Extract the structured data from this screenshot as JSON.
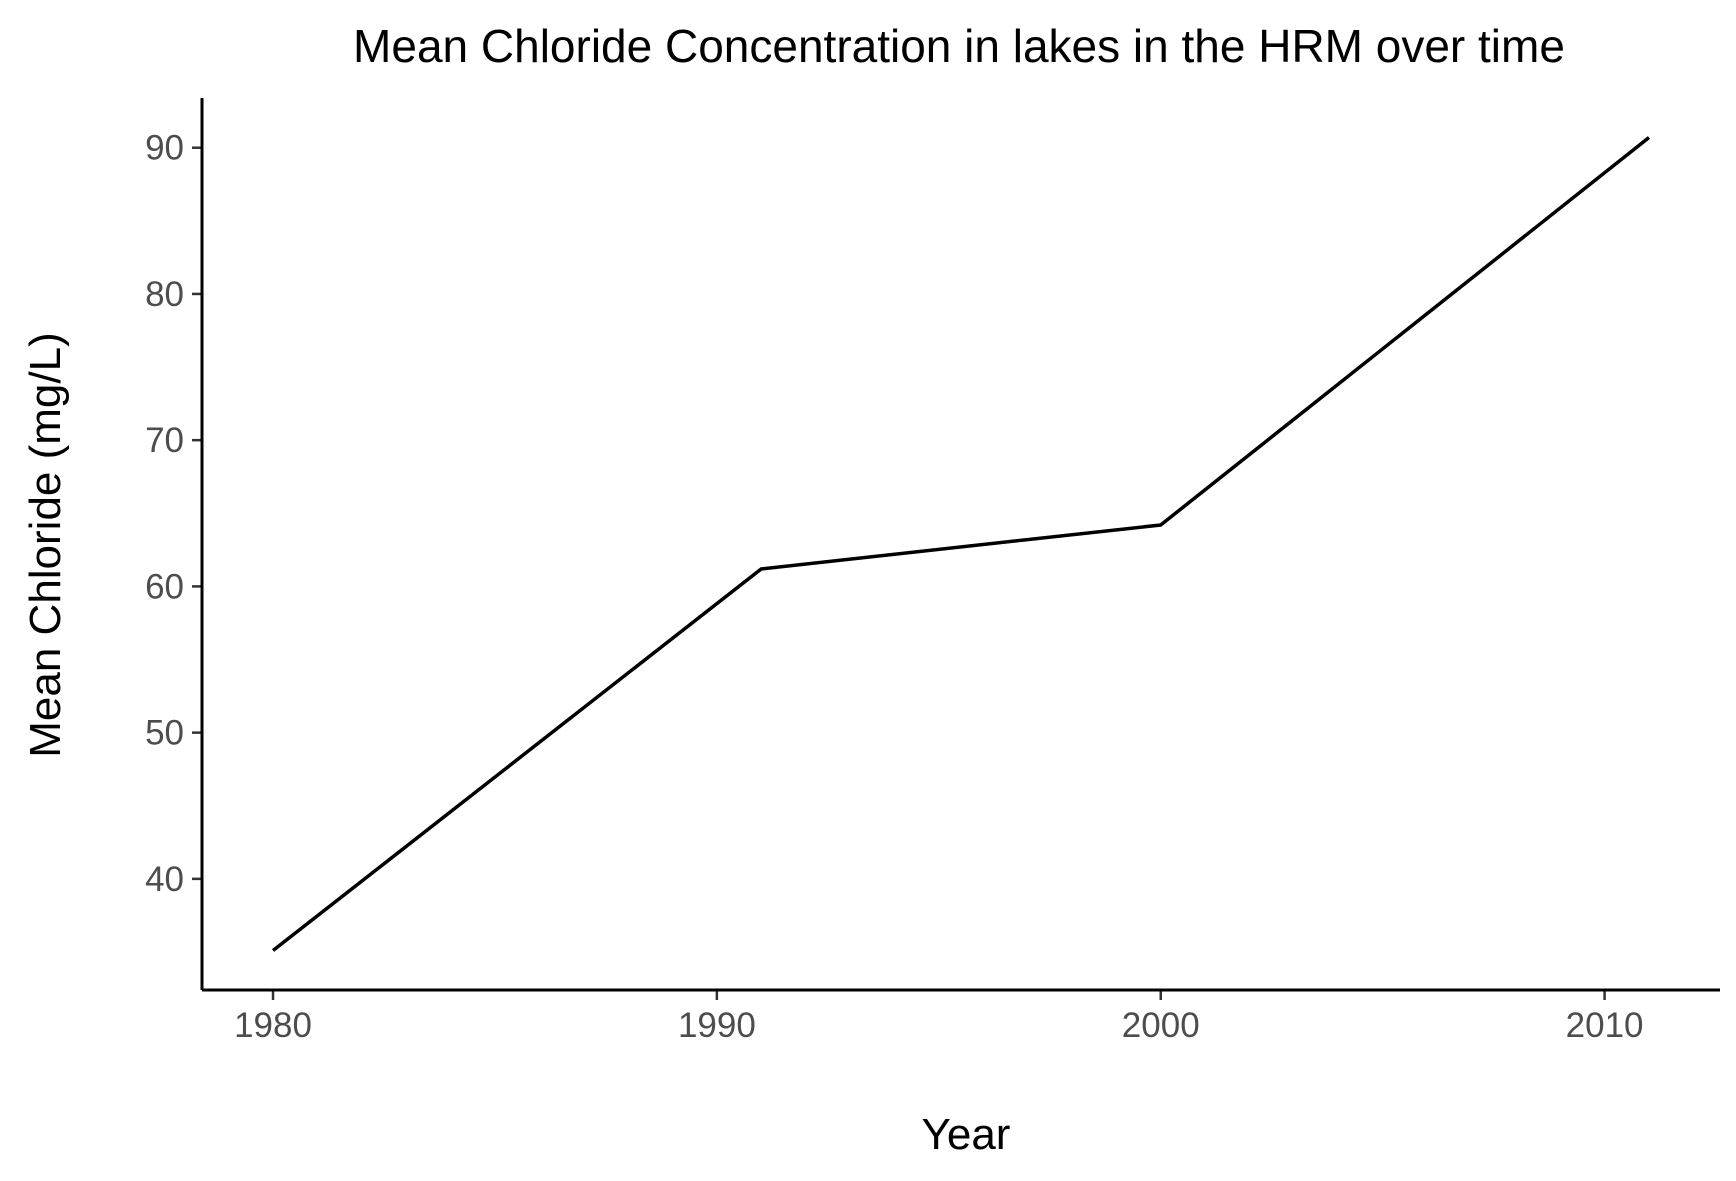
{
  "chart_data": {
    "type": "line",
    "title": "Mean Chloride Concentration in lakes in the HRM over time",
    "xlabel": "Year",
    "ylabel": "Mean Chloride (mg/L)",
    "x": [
      1980,
      1991,
      2000,
      2011
    ],
    "series": [
      {
        "values": [
          35.1,
          61.2,
          64.2,
          90.7
        ]
      }
    ],
    "xlim": [
      1978.4,
      2012.6
    ],
    "ylim": [
      32.4,
      93.4
    ],
    "xticks": [
      1980,
      1990,
      2000,
      2010
    ],
    "yticks": [
      40,
      50,
      60,
      70,
      80,
      90
    ],
    "grid": false,
    "legend": "none",
    "colors": {
      "line": "#000000",
      "axis": "#000000",
      "tick_label": "#4d4d4d"
    }
  }
}
